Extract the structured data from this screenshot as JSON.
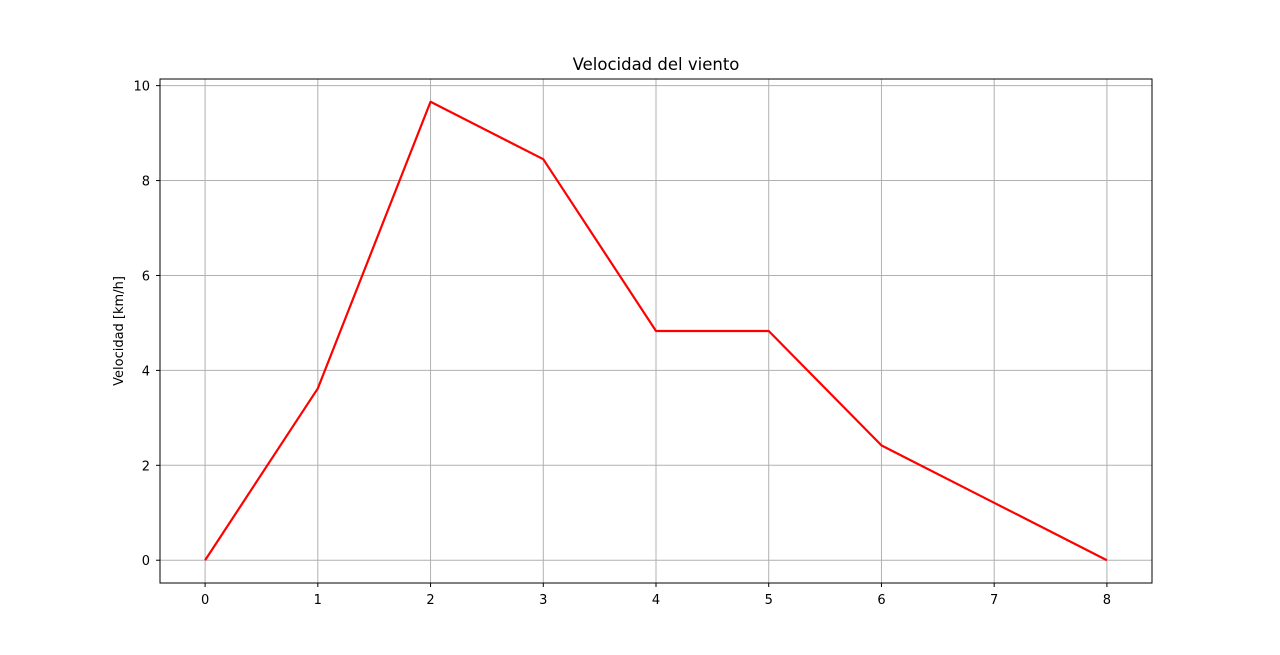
{
  "chart_data": {
    "type": "line",
    "title": "Velocidad del viento",
    "xlabel": "",
    "ylabel": "Velocidad [km/h]",
    "x": [
      0,
      1,
      2,
      3,
      4,
      5,
      6,
      7,
      8
    ],
    "series": [
      {
        "values": [
          0,
          3.62,
          9.66,
          8.45,
          4.83,
          4.83,
          2.42,
          1.21,
          0
        ],
        "color": "#ff0000"
      }
    ],
    "xlim": [
      -0.4,
      8.4
    ],
    "ylim": [
      -0.48,
      10.14
    ],
    "xticks": [
      0,
      1,
      2,
      3,
      4,
      5,
      6,
      7,
      8
    ],
    "yticks": [
      0,
      2,
      4,
      6,
      8,
      10
    ],
    "grid": true,
    "grid_color": "#b0b0b0",
    "legend": "none"
  }
}
